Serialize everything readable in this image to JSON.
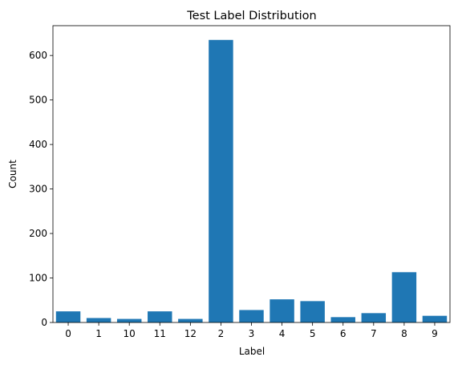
{
  "chart_data": {
    "type": "bar",
    "title": "Test Label Distribution",
    "xlabel": "Label",
    "ylabel": "Count",
    "categories": [
      "0",
      "1",
      "10",
      "11",
      "12",
      "2",
      "3",
      "4",
      "5",
      "6",
      "7",
      "8",
      "9"
    ],
    "values": [
      25,
      10,
      8,
      25,
      8,
      635,
      28,
      52,
      48,
      12,
      21,
      113,
      15
    ],
    "ylim": [
      0,
      667
    ],
    "yticks": [
      0,
      100,
      200,
      300,
      400,
      500,
      600
    ],
    "bar_color": "#1f77b4",
    "grid": false,
    "legend": "none"
  }
}
